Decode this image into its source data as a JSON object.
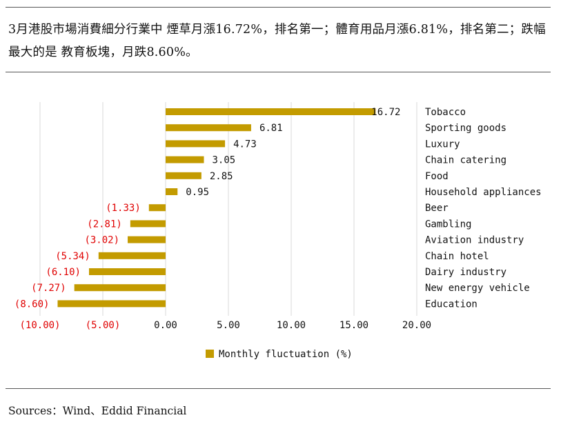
{
  "headline": "3月港股市場消費細分行業中 煙草月漲16.72%，排名第一；體育用品月漲6.81%，排名第二；跌幅最大的是 教育板塊，月跌8.60%。",
  "source": "Sources：Wind、Eddid Financial",
  "colors": {
    "bar": "#C39B00",
    "negative": "#E00000",
    "grid": "#D9D9D9",
    "text": "#111111"
  },
  "chart_data": {
    "type": "bar",
    "orientation": "horizontal",
    "categories": [
      "Tobacco",
      "Sporting goods",
      "Luxury",
      "Chain catering",
      "Food",
      "Household appliances",
      "Beer",
      "Gambling",
      "Aviation industry",
      "Chain hotel",
      "Dairy industry",
      "New energy vehicle",
      "Education"
    ],
    "values": [
      16.72,
      6.81,
      4.73,
      3.05,
      2.85,
      0.95,
      -1.33,
      -2.81,
      -3.02,
      -5.34,
      -6.1,
      -7.27,
      -8.6
    ],
    "value_labels": [
      "16.72",
      "6.81",
      "4.73",
      "3.05",
      "2.85",
      "0.95",
      "(1.33)",
      "(2.81)",
      "(3.02)",
      "(5.34)",
      "(6.10)",
      "(7.27)",
      "(8.60)"
    ],
    "xlim": [
      -10,
      20
    ],
    "xticks": [
      -10,
      -5,
      0,
      5,
      10,
      15,
      20
    ],
    "xtick_labels": [
      "(10.00)",
      "(5.00)",
      "0.00",
      "5.00",
      "10.00",
      "15.00",
      "20.00"
    ],
    "legend": "Monthly fluctuation (%)",
    "legend_position": "bottom",
    "grid": true
  }
}
